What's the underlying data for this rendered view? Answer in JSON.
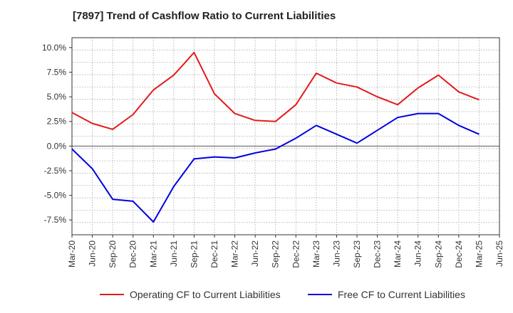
{
  "chart_data": {
    "type": "line",
    "title": "[7897]  Trend of Cashflow Ratio to Current Liabilities",
    "xlabel": "",
    "ylabel": "",
    "x_ticks": [
      "Mar-20",
      "Jun-20",
      "Sep-20",
      "Dec-20",
      "Mar-21",
      "Jun-21",
      "Sep-21",
      "Dec-21",
      "Mar-22",
      "Jun-22",
      "Sep-22",
      "Dec-22",
      "Mar-23",
      "Jun-23",
      "Sep-23",
      "Dec-23",
      "Mar-24",
      "Jun-24",
      "Sep-24",
      "Dec-24",
      "Mar-25",
      "Jun-25"
    ],
    "y_ticks": [
      "10.0%",
      "7.5%",
      "5.0%",
      "2.5%",
      "0.0%",
      "-2.5%",
      "-5.0%",
      "-7.5%"
    ],
    "y_tick_values": [
      10,
      7.5,
      5,
      2.5,
      0,
      -2.5,
      -5,
      -7.5
    ],
    "ylim": [
      -9,
      11
    ],
    "grid": true,
    "legend_position": "bottom",
    "series": [
      {
        "name": "Operating CF to Current Liabilities",
        "color": "#e31a1c",
        "values": [
          3.4,
          2.3,
          1.7,
          3.2,
          5.7,
          7.2,
          9.5,
          5.3,
          3.3,
          2.6,
          2.5,
          4.2,
          7.4,
          6.4,
          6.0,
          5.0,
          4.2,
          5.9,
          7.2,
          5.5,
          4.7,
          null
        ]
      },
      {
        "name": "Free CF to Current Liabilities",
        "color": "#0000e0",
        "values": [
          -0.3,
          -2.3,
          -5.4,
          -5.6,
          -7.7,
          -4.1,
          -1.3,
          -1.1,
          -1.2,
          -0.7,
          -0.3,
          0.8,
          2.1,
          1.2,
          0.3,
          1.6,
          2.9,
          3.3,
          3.3,
          2.1,
          1.2,
          null
        ]
      }
    ]
  }
}
